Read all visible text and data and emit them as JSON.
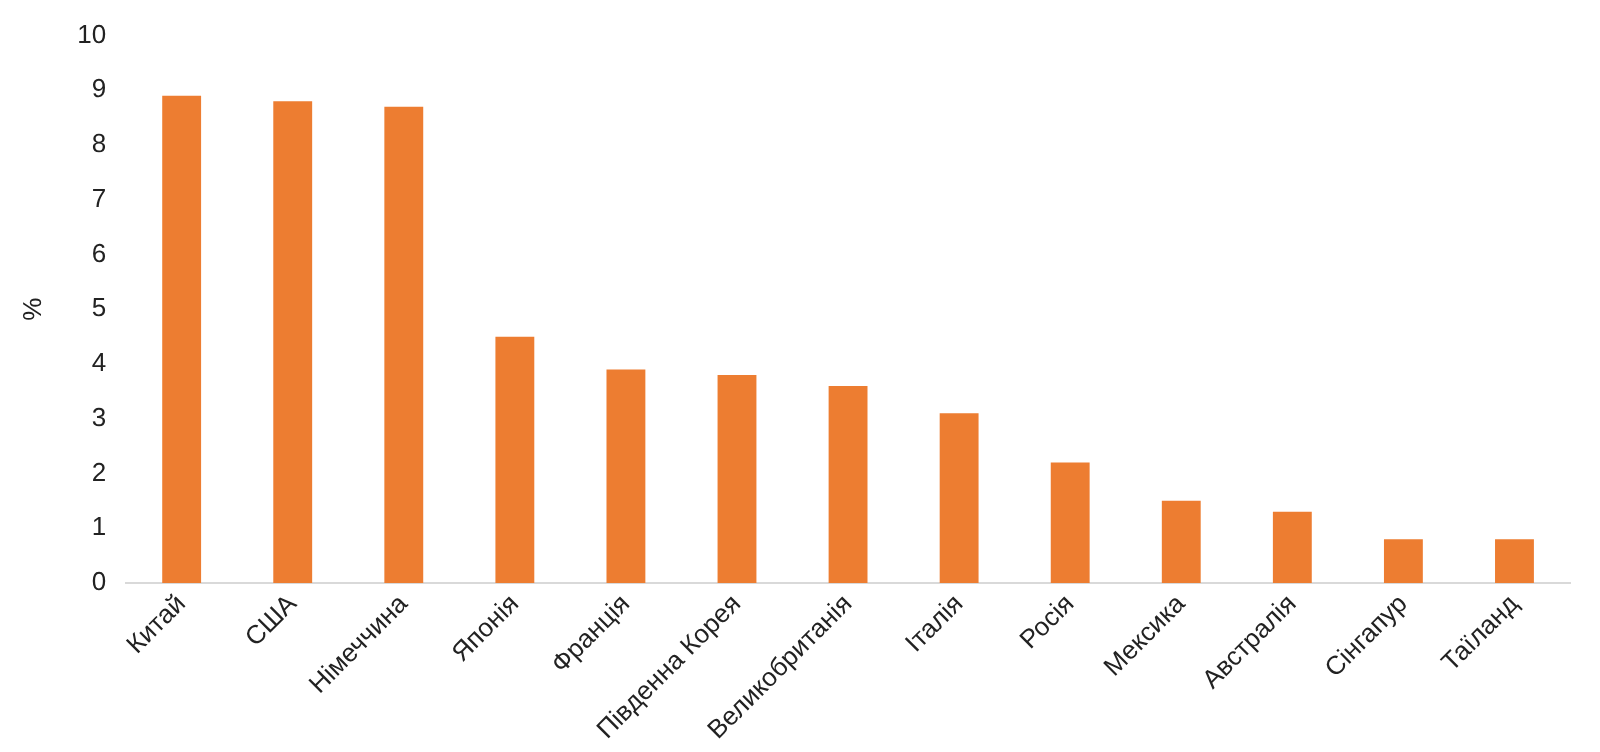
{
  "chart_data": {
    "type": "bar",
    "ylabel": "%",
    "categories": [
      "Китай",
      "США",
      "Німеччина",
      "Японія",
      "Франція",
      "Південна Корея",
      "Великобританія",
      "Італія",
      "Росія",
      "Мексика",
      "Австралія",
      "Сінгапур",
      "Таїланд"
    ],
    "values": [
      8.9,
      8.8,
      8.7,
      4.5,
      3.9,
      3.8,
      3.6,
      3.1,
      2.2,
      1.5,
      1.3,
      0.8,
      0.8
    ],
    "color": "#ed7d31",
    "ylim": [
      0,
      10
    ],
    "yticks": [
      0,
      1,
      2,
      3,
      4,
      5,
      6,
      7,
      8,
      9,
      10
    ],
    "grid": false,
    "legend": false
  }
}
